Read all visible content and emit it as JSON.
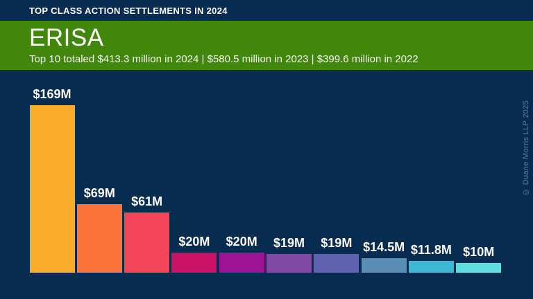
{
  "header": {
    "title": "TOP CLASS ACTION SETTLEMENTS IN 2024"
  },
  "hero": {
    "title": "ERISA",
    "subtitle": "Top 10 totaled $413.3 million in 2024 | $580.5 million in 2023 | $399.6 million in 2022"
  },
  "watermark": {
    "text": "© Duane Morris LLP 2025"
  },
  "colors": {
    "background": "#072C4F",
    "band_green": "#41870C",
    "text": "#FFFFFF",
    "watermark": "#5C7B9B"
  },
  "chart_data": {
    "type": "bar",
    "title": "ERISA",
    "labels": [
      "$169M",
      "$69M",
      "$61M",
      "$20M",
      "$20M",
      "$19M",
      "$19M",
      "$14.5M",
      "$11.8M",
      "$10M"
    ],
    "values": [
      169,
      69,
      61,
      20,
      20,
      19,
      19,
      14.5,
      11.8,
      10
    ],
    "bar_colors": [
      "#FBAB2A",
      "#FB7339",
      "#F44457",
      "#CB1168",
      "#9C1492",
      "#7F48A3",
      "#5F63AF",
      "#5B8CB4",
      "#3FB7D3",
      "#5FDCDE"
    ],
    "ylim": [
      0,
      169
    ],
    "grid": false,
    "legend": false,
    "data_labels": "above-bar"
  }
}
